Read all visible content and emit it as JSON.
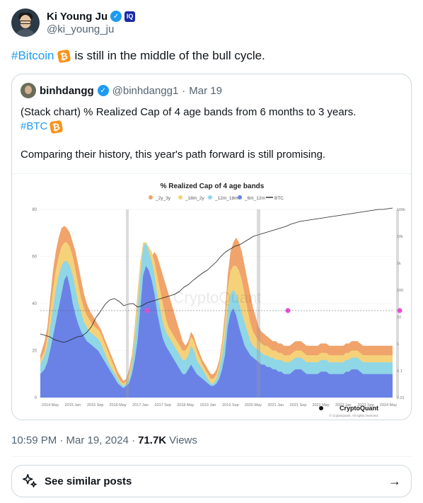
{
  "author": {
    "name": "Ki Young Ju",
    "handle": "@ki_young_ju"
  },
  "tweet": {
    "hashtag": "#Bitcoin",
    "text": "is still in the middle of the bull cycle."
  },
  "quote": {
    "name": "binhdangg",
    "handle": "@binhdangg1",
    "sep": "·",
    "date": "Mar 19",
    "line1": "(Stack chart) % Realized Cap of 4 age bands from 6 months to 3 years.",
    "line2": "#BTC",
    "line3": "Comparing their history, this year's path forward is still promising."
  },
  "meta": {
    "time": "10:59 PM · Mar 19, 2024 ·",
    "views": "71.7K",
    "views_label": "Views"
  },
  "similar": {
    "label": "See similar posts"
  },
  "colors": {
    "link": "#1d9bf0",
    "band_2y3y": "#f0a36a",
    "band_18m2y": "#f5d27a",
    "band_12m18m": "#8fd6e6",
    "band_6m12m": "#6a82e6"
  },
  "chart_data": {
    "type": "area",
    "title": "% Realized Cap of 4 age bands",
    "legend": [
      "_2y_3y",
      "_18m_2y",
      "_12m_18m",
      "_6m_12m",
      "BTC"
    ],
    "legend_position": "top",
    "yticks_left": [
      "0",
      "20",
      "40",
      "60",
      "80"
    ],
    "yticks_right": [
      "0.01",
      "0.1",
      "1",
      "10",
      "100",
      "1k",
      "10k",
      "100k"
    ],
    "xticks": [
      "2014 May",
      "2015 Jan",
      "2015 Sep",
      "2016 May",
      "2017 Jan",
      "2017 Sep",
      "2018 May",
      "2019 Jan",
      "2019 Sep",
      "2020 May",
      "2021 Jan",
      "2021 Sep",
      "2022 May",
      "2023 Jan",
      "2023 Sep",
      "2024 May"
    ],
    "ylim": [
      0,
      80
    ],
    "watermark": "CryptoQuant",
    "brand": "CryptoQuant",
    "copyright": "© CryptoQuant. All rights reserved.",
    "grid": true,
    "x": [
      0,
      6,
      10,
      14,
      18,
      22,
      26,
      30,
      34,
      38,
      42,
      46,
      50,
      54,
      58,
      62,
      66,
      70,
      74,
      78,
      82,
      86,
      90,
      94,
      98,
      102,
      106,
      110,
      114,
      118,
      122,
      126,
      130,
      134,
      138,
      142,
      146,
      150,
      154,
      158,
      162,
      166,
      170,
      174,
      178,
      182,
      186,
      190,
      194,
      198,
      202,
      206,
      210,
      214,
      218,
      222,
      226,
      230,
      234,
      238,
      242,
      246,
      250,
      254,
      258,
      262,
      266,
      270,
      274,
      278,
      282,
      286,
      290,
      294,
      298,
      302,
      306,
      310,
      314,
      318,
      322,
      326,
      330,
      334,
      338,
      342,
      346,
      350,
      354,
      358,
      362,
      366,
      370,
      374,
      378,
      382,
      386,
      390,
      394,
      398,
      402,
      406,
      410,
      414,
      418,
      422,
      426,
      430,
      434,
      438,
      442,
      446,
      450,
      454,
      458,
      462,
      466,
      470,
      474,
      478,
      482,
      486,
      490,
      494,
      498,
      500
    ],
    "series": [
      {
        "name": "_6m_12m",
        "values": [
          10,
          12,
          15,
          20,
          26,
          32,
          38,
          44,
          50,
          52,
          47,
          40,
          35,
          31,
          28,
          26,
          24,
          23,
          22,
          21,
          20,
          18,
          16,
          14,
          12,
          10,
          8,
          6,
          5,
          4,
          5,
          6,
          10,
          16,
          24,
          38,
          52,
          56,
          54,
          50,
          44,
          36,
          30,
          25,
          22,
          20,
          18,
          16,
          14,
          12,
          10,
          10,
          12,
          14,
          12,
          10,
          9,
          8,
          7,
          6,
          5,
          5,
          6,
          8,
          12,
          18,
          30,
          36,
          38,
          35,
          30,
          26,
          22,
          20,
          18,
          17,
          16,
          15,
          14,
          14,
          13,
          13,
          12,
          12,
          11,
          11,
          10,
          10,
          10,
          11,
          12,
          12,
          12,
          11,
          10,
          10,
          10,
          10,
          10,
          11,
          11,
          11,
          10,
          10,
          10,
          10,
          10,
          10,
          11,
          11,
          12,
          12,
          12,
          11,
          10,
          10,
          10,
          10,
          10,
          10,
          10,
          10,
          10,
          10,
          10,
          10
        ]
      },
      {
        "name": "_12m_18m",
        "values": [
          14,
          18,
          22,
          30,
          38,
          46,
          52,
          56,
          58,
          58,
          56,
          52,
          46,
          40,
          36,
          32,
          30,
          28,
          27,
          26,
          25,
          23,
          20,
          17,
          14,
          12,
          10,
          8,
          6,
          5,
          6,
          8,
          14,
          24,
          36,
          52,
          64,
          66,
          62,
          58,
          52,
          44,
          38,
          32,
          28,
          26,
          24,
          22,
          20,
          18,
          16,
          16,
          18,
          22,
          20,
          16,
          14,
          12,
          10,
          8,
          6,
          6,
          8,
          12,
          18,
          26,
          38,
          44,
          46,
          44,
          40,
          36,
          32,
          28,
          24,
          22,
          21,
          20,
          19,
          18,
          18,
          17,
          17,
          16,
          16,
          16,
          15,
          15,
          15,
          16,
          17,
          17,
          17,
          16,
          15,
          15,
          15,
          15,
          15,
          16,
          16,
          16,
          15,
          15,
          15,
          15,
          15,
          15,
          16,
          16,
          17,
          17,
          17,
          16,
          15,
          15,
          15,
          15,
          15,
          15,
          15,
          15,
          15,
          15,
          15,
          15
        ]
      },
      {
        "name": "_18m_2y",
        "values": [
          16,
          20,
          26,
          36,
          46,
          54,
          60,
          64,
          66,
          66,
          64,
          60,
          54,
          48,
          42,
          38,
          35,
          33,
          31,
          30,
          29,
          27,
          24,
          21,
          18,
          15,
          12,
          9,
          7,
          6,
          7,
          10,
          16,
          28,
          42,
          58,
          66,
          66,
          64,
          62,
          58,
          52,
          46,
          40,
          34,
          30,
          28,
          26,
          24,
          22,
          20,
          20,
          22,
          26,
          24,
          20,
          17,
          14,
          12,
          10,
          8,
          8,
          10,
          14,
          22,
          32,
          46,
          54,
          56,
          56,
          54,
          50,
          44,
          38,
          32,
          28,
          26,
          24,
          23,
          22,
          22,
          21,
          20,
          20,
          19,
          19,
          18,
          18,
          18,
          19,
          20,
          20,
          20,
          19,
          18,
          18,
          18,
          18,
          18,
          19,
          19,
          19,
          18,
          18,
          18,
          18,
          18,
          18,
          19,
          19,
          20,
          20,
          20,
          19,
          18,
          18,
          18,
          18,
          18,
          18,
          18,
          18,
          18,
          18,
          18,
          18
        ]
      },
      {
        "name": "_2y_3y",
        "values": [
          18,
          24,
          30,
          42,
          54,
          62,
          68,
          72,
          73,
          72,
          70,
          66,
          62,
          56,
          50,
          44,
          40,
          37,
          35,
          33,
          31,
          29,
          26,
          23,
          20,
          17,
          14,
          11,
          9,
          7,
          8,
          12,
          18,
          30,
          44,
          58,
          64,
          64,
          62,
          60,
          62,
          60,
          56,
          52,
          48,
          44,
          40,
          36,
          32,
          28,
          24,
          22,
          24,
          28,
          26,
          22,
          19,
          16,
          14,
          12,
          10,
          10,
          12,
          16,
          24,
          36,
          52,
          62,
          66,
          68,
          66,
          62,
          56,
          50,
          44,
          38,
          34,
          30,
          28,
          27,
          26,
          25,
          24,
          24,
          23,
          23,
          22,
          22,
          22,
          23,
          24,
          24,
          24,
          23,
          22,
          22,
          22,
          22,
          22,
          23,
          23,
          23,
          22,
          22,
          22,
          22,
          22,
          22,
          23,
          23,
          24,
          24,
          24,
          23,
          22,
          22,
          22,
          22,
          22,
          22,
          22,
          22,
          22,
          22,
          22,
          22
        ]
      }
    ]
  }
}
